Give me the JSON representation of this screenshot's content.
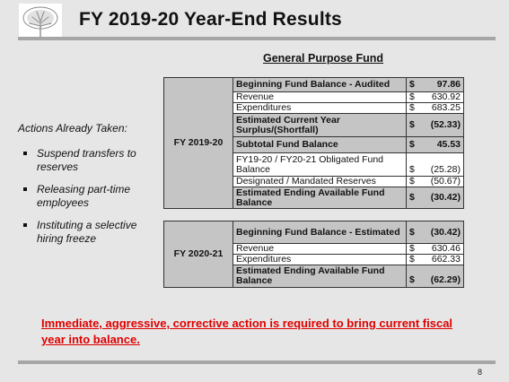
{
  "header": {
    "title": "FY 2019-20 Year-End Results"
  },
  "fund_title": "General Purpose Fund",
  "actions": {
    "title": "Actions Already Taken:",
    "items": [
      "Suspend transfers to reserves",
      "Releasing part-time employees",
      "Instituting a selective hiring freeze"
    ]
  },
  "fy2019": {
    "year": "FY 2019-20",
    "rows": [
      {
        "label": "Beginning Fund Balance - Audited",
        "dollar": "$",
        "value": "97.86",
        "bold": true
      },
      {
        "label": "Revenue",
        "dollar": "$",
        "value": "630.92",
        "bold": false
      },
      {
        "label": "Expenditures",
        "dollar": "$",
        "value": "683.25",
        "bold": false
      },
      {
        "label": "Estimated Current Year Surplus/(Shortfall)",
        "dollar": "$",
        "value": "(52.33)",
        "bold": true
      },
      {
        "label": "Subtotal Fund Balance",
        "dollar": "$",
        "value": "45.53",
        "bold": true
      },
      {
        "label": "FY19-20 / FY20-21 Obligated Fund Balance",
        "dollar": "$",
        "value": "(25.28)",
        "bold": false
      },
      {
        "label": "Designated / Mandated Reserves",
        "dollar": "$",
        "value": "(50.67)",
        "bold": false
      },
      {
        "label": "Estimated Ending Available Fund Balance",
        "dollar": "$",
        "value": "(30.42)",
        "bold": true
      }
    ]
  },
  "fy2020": {
    "year": "FY 2020-21",
    "rows": [
      {
        "label": "Beginning Fund Balance - Estimated",
        "dollar": "$",
        "value": "(30.42)",
        "bold": true
      },
      {
        "label": "Revenue",
        "dollar": "$",
        "value": "630.46",
        "bold": false
      },
      {
        "label": "Expenditures",
        "dollar": "$",
        "value": "662.33",
        "bold": false
      },
      {
        "label": "Estimated Ending Available Fund Balance",
        "dollar": "$",
        "value": "(62.29)",
        "bold": true
      }
    ]
  },
  "warning": "Immediate, aggressive, corrective action is required to bring current fiscal year into balance.",
  "footer": {
    "page_number": "8"
  },
  "colors": {
    "warning": "#e00000",
    "header_cell": "#c5c5c5",
    "rule": "#a6a6a6"
  },
  "icons": {
    "logo": "oak-tree-logo-icon",
    "bullet": "square-bullet-icon"
  }
}
